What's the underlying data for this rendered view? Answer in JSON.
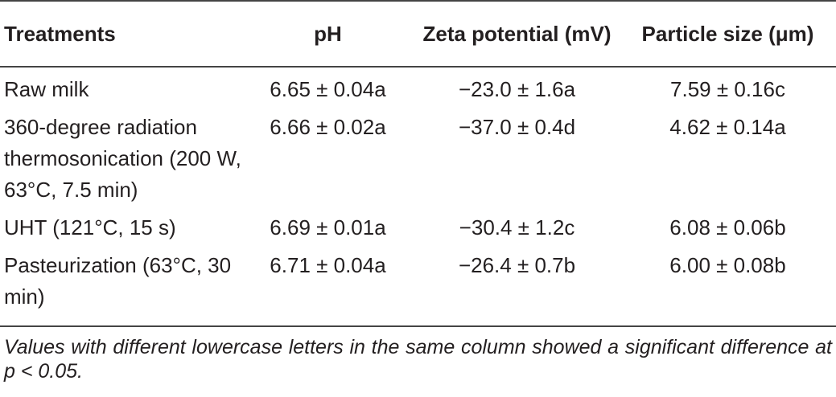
{
  "table": {
    "header": [
      "Treatments",
      "pH",
      "Zeta potential (mV)",
      "Particle size (μm)"
    ],
    "rows": [
      [
        "Raw milk",
        "6.65 ± 0.04a",
        "−23.0 ± 1.6a",
        "7.59 ± 0.16c"
      ],
      [
        "360-degree radiation thermosonication (200 W, 63°C, 7.5 min)",
        "6.66 ± 0.02a",
        "−37.0 ± 0.4d",
        "4.62 ± 0.14a"
      ],
      [
        "UHT (121°C, 15 s)",
        "6.69 ± 0.01a",
        "−30.4 ± 1.2c",
        "6.08 ± 0.06b"
      ],
      [
        "Pasteurization (63°C, 30 min)",
        "6.71 ± 0.04a",
        "−26.4 ± 0.7b",
        "6.00 ± 0.08b"
      ]
    ]
  },
  "footnote": "Values with different lowercase letters in the same column showed a significant difference at p < 0.05."
}
